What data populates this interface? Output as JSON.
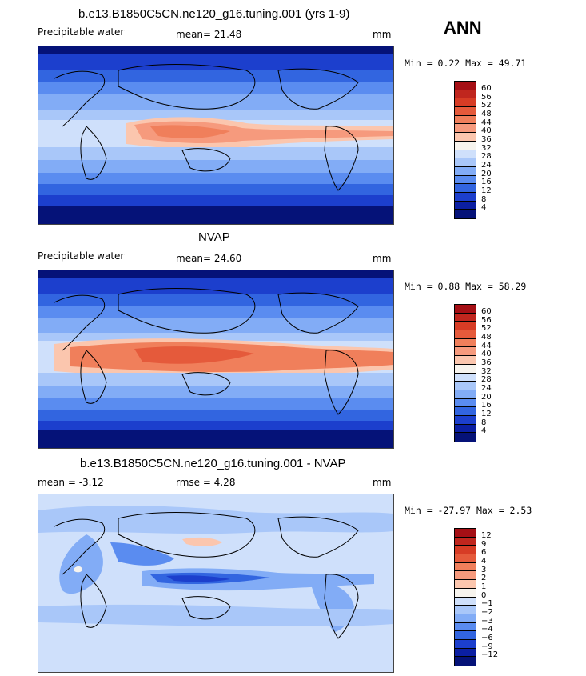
{
  "season": "ANN",
  "units": "mm",
  "panels": [
    {
      "title": "b.e13.B1850C5CN.ne120_g16.tuning.001 (yrs 1-9)",
      "left_label": "Precipitable water",
      "mid_label": "mean=  21.48",
      "right_label": "mm",
      "minmax": "Min =   0.22 Max =  49.71",
      "colorbar_levels": [
        "60",
        "56",
        "52",
        "48",
        "44",
        "40",
        "36",
        "32",
        "28",
        "24",
        "20",
        "16",
        "12",
        "8",
        "4"
      ],
      "colorbar_colors": [
        "#a50f15",
        "#c0261e",
        "#d73c25",
        "#e55a3b",
        "#f07f5b",
        "#f69a7d",
        "#fbc6ae",
        "#f7f4ee",
        "#cfe0fb",
        "#a9c7f9",
        "#82acf6",
        "#5a8cf0",
        "#3265e0",
        "#1c3fcd",
        "#0b1fa3",
        "#051278"
      ]
    },
    {
      "title": "NVAP",
      "left_label": "Precipitable water",
      "mid_label": "mean=  24.60",
      "right_label": "mm",
      "minmax": "Min =   0.88 Max =  58.29",
      "colorbar_levels": [
        "60",
        "56",
        "52",
        "48",
        "44",
        "40",
        "36",
        "32",
        "28",
        "24",
        "20",
        "16",
        "12",
        "8",
        "4"
      ],
      "colorbar_colors": [
        "#a50f15",
        "#c0261e",
        "#d73c25",
        "#e55a3b",
        "#f07f5b",
        "#f69a7d",
        "#fbc6ae",
        "#f7f4ee",
        "#cfe0fb",
        "#a9c7f9",
        "#82acf6",
        "#5a8cf0",
        "#3265e0",
        "#1c3fcd",
        "#0b1fa3",
        "#051278"
      ]
    },
    {
      "title": "b.e13.B1850C5CN.ne120_g16.tuning.001 - NVAP",
      "left_label": "mean =   -3.12",
      "mid_label": "rmse =    4.28",
      "right_label": "mm",
      "minmax": "Min = -27.97 Max =   2.53",
      "colorbar_levels": [
        "12",
        "9",
        "6",
        "4",
        "3",
        "2",
        "1",
        "0",
        "−1",
        "−2",
        "−3",
        "−4",
        "−6",
        "−9",
        "−12"
      ],
      "colorbar_colors": [
        "#a50f15",
        "#c0261e",
        "#d73c25",
        "#e55a3b",
        "#f07f5b",
        "#f69a7d",
        "#fbc6ae",
        "#f7f4ee",
        "#cfe0fb",
        "#a9c7f9",
        "#82acf6",
        "#5a8cf0",
        "#3265e0",
        "#1c3fcd",
        "#0b1fa3",
        "#051278"
      ]
    }
  ]
}
